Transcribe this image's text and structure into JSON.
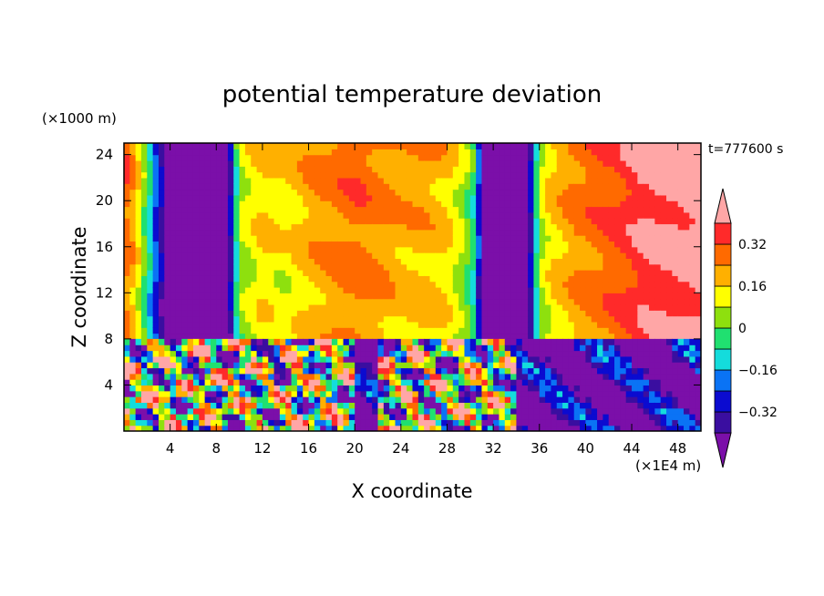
{
  "chart_data": {
    "type": "heatmap",
    "title": "potential temperature deviation",
    "xlabel": "X coordinate",
    "ylabel": "Z coordinate",
    "x_unit": "(×1E4 m)",
    "y_unit": "(×1000 m)",
    "time_label": "t=777600 s",
    "x_range": [
      0,
      50
    ],
    "y_range": [
      0,
      25
    ],
    "x_ticks": [
      4,
      8,
      12,
      16,
      20,
      24,
      28,
      32,
      36,
      40,
      44,
      48
    ],
    "y_ticks": [
      4,
      8,
      12,
      16,
      20,
      24
    ],
    "colorbar": {
      "levels": [
        -0.4,
        -0.32,
        -0.24,
        -0.16,
        -0.08,
        0,
        0.08,
        0.16,
        0.24,
        0.32,
        0.4
      ],
      "tick_labels": [
        "0.32",
        "0.16",
        "0",
        "−0.16",
        "−0.32"
      ],
      "tick_values": [
        0.32,
        0.16,
        0,
        -0.16,
        -0.32
      ],
      "colors": [
        "#7b0fa9",
        "#3a0ea0",
        "#0b0bd0",
        "#0a73f5",
        "#14dcdc",
        "#20e070",
        "#8ee00e",
        "#ffff00",
        "#ffb000",
        "#ff6a00",
        "#ff2a2a",
        "#ffa6a6"
      ],
      "extend": "both"
    },
    "upper_layer": {
      "z_range": [
        8,
        25
      ],
      "column_values": [
        [
          0,
          0.3
        ],
        [
          1,
          0.18
        ],
        [
          2,
          -0.05
        ],
        [
          3,
          -0.3
        ],
        [
          4,
          -0.45
        ],
        [
          5,
          -0.45
        ],
        [
          9,
          -0.45
        ],
        [
          10,
          0.05
        ],
        [
          12,
          0.16
        ],
        [
          14,
          0.12
        ],
        [
          16,
          0.2
        ],
        [
          18,
          0.24
        ],
        [
          20,
          0.28
        ],
        [
          22,
          0.24
        ],
        [
          24,
          0.2
        ],
        [
          26,
          0.2
        ],
        [
          28,
          0.16
        ],
        [
          29.5,
          0.05
        ],
        [
          30.5,
          -0.1
        ],
        [
          31,
          -0.45
        ],
        [
          35,
          -0.45
        ],
        [
          36,
          0.05
        ],
        [
          37,
          0.15
        ],
        [
          39,
          0.24
        ],
        [
          41,
          0.28
        ],
        [
          43,
          0.32
        ],
        [
          45,
          0.4
        ],
        [
          48,
          0.42
        ],
        [
          50,
          0.45
        ]
      ]
    },
    "lower_layer": {
      "z_range": [
        0,
        8
      ],
      "dominant_value": -0.4,
      "turbulent_x_ranges": [
        [
          0,
          20
        ],
        [
          22,
          34
        ]
      ]
    }
  }
}
